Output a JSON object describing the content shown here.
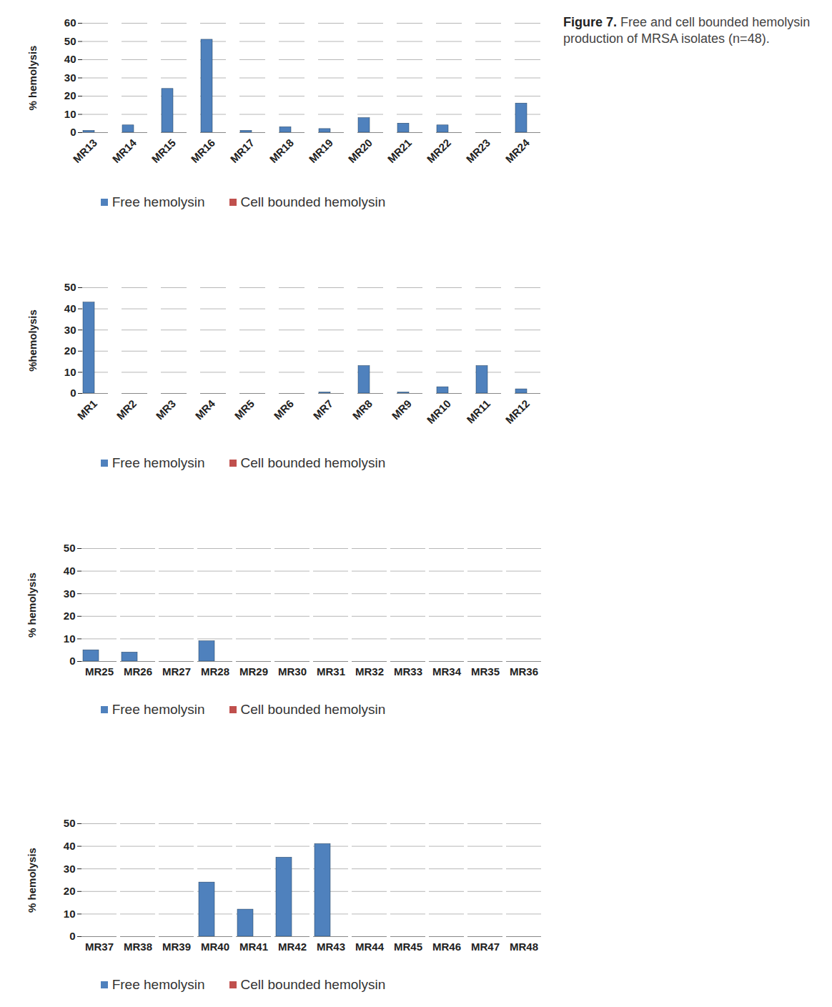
{
  "caption": {
    "label": "Figure 7.",
    "text": "Free and cell bounded hemolysin production of MRSA isolates (n=48)."
  },
  "chart_data": [
    {
      "type": "bar",
      "y_label": "% hemolysis",
      "categories": [
        "MR13",
        "MR14",
        "MR15",
        "MR16",
        "MR17",
        "MR18",
        "MR19",
        "MR20",
        "MR21",
        "MR22",
        "MR23",
        "MR24"
      ],
      "series": [
        {
          "name": "Free hemolysin",
          "color": "#4f81bd",
          "values": [
            1,
            4,
            24,
            51,
            1,
            3,
            2,
            8,
            5,
            4,
            0,
            16
          ]
        },
        {
          "name": "Cell bounded hemolysin",
          "color": "#c0504d",
          "values": [
            0,
            0,
            0,
            0,
            0,
            0,
            0,
            0,
            0,
            0,
            0,
            0
          ]
        }
      ],
      "ylim": [
        0,
        60
      ],
      "yticks": [
        0,
        10,
        20,
        30,
        40,
        50,
        60
      ],
      "grid": true,
      "legend": "bottom"
    },
    {
      "type": "bar",
      "y_label": "%hemolysis",
      "categories": [
        "MR1",
        "MR2",
        "MR3",
        "MR4",
        "MR5",
        "MR6",
        "MR7",
        "MR8",
        "MR9",
        "MR10",
        "MR11",
        "MR12"
      ],
      "series": [
        {
          "name": "Free hemolysin",
          "color": "#4f81bd",
          "values": [
            43,
            0,
            0,
            0,
            0,
            0,
            0.5,
            13,
            0.5,
            3,
            13,
            2
          ]
        },
        {
          "name": "Cell bounded hemolysin",
          "color": "#c0504d",
          "values": [
            0,
            0,
            0,
            0,
            0,
            0,
            0,
            0,
            0,
            0,
            0,
            0
          ]
        }
      ],
      "ylim": [
        0,
        50
      ],
      "yticks": [
        0,
        10,
        20,
        30,
        40,
        50
      ],
      "grid": true,
      "legend": "bottom"
    },
    {
      "type": "bar",
      "y_label": "% hemolysis",
      "categories": [
        "MR25",
        "MR26",
        "MR27",
        "MR28",
        "MR29",
        "MR30",
        "MR31",
        "MR32",
        "MR33",
        "MR34",
        "MR35",
        "MR36"
      ],
      "series": [
        {
          "name": "Free hemolysin",
          "color": "#4f81bd",
          "values": [
            5,
            4,
            0,
            9,
            0,
            0,
            0,
            0,
            0,
            0,
            0,
            0
          ]
        },
        {
          "name": "Cell bounded hemolysin",
          "color": "#c0504d",
          "values": [
            0,
            0,
            0,
            0,
            0,
            0,
            0,
            0,
            0,
            0,
            0,
            0
          ]
        }
      ],
      "ylim": [
        0,
        50
      ],
      "yticks": [
        0,
        10,
        20,
        30,
        40,
        50
      ],
      "grid": true,
      "legend": "bottom"
    },
    {
      "type": "bar",
      "y_label": "% hemolysis",
      "categories": [
        "MR37",
        "MR38",
        "MR39",
        "MR40",
        "MR41",
        "MR42",
        "MR43",
        "MR44",
        "MR45",
        "MR46",
        "MR47",
        "MR48"
      ],
      "series": [
        {
          "name": "Free hemolysin",
          "color": "#4f81bd",
          "values": [
            0,
            0,
            0,
            24,
            12,
            35,
            41,
            0,
            0,
            0,
            0,
            0
          ]
        },
        {
          "name": "Cell bounded hemolysin",
          "color": "#c0504d",
          "values": [
            0,
            0,
            0,
            0,
            0,
            0,
            0,
            0,
            0,
            0,
            0,
            0
          ]
        }
      ],
      "ylim": [
        0,
        50
      ],
      "yticks": [
        0,
        10,
        20,
        30,
        40,
        50
      ],
      "grid": true,
      "legend": "bottom"
    }
  ]
}
